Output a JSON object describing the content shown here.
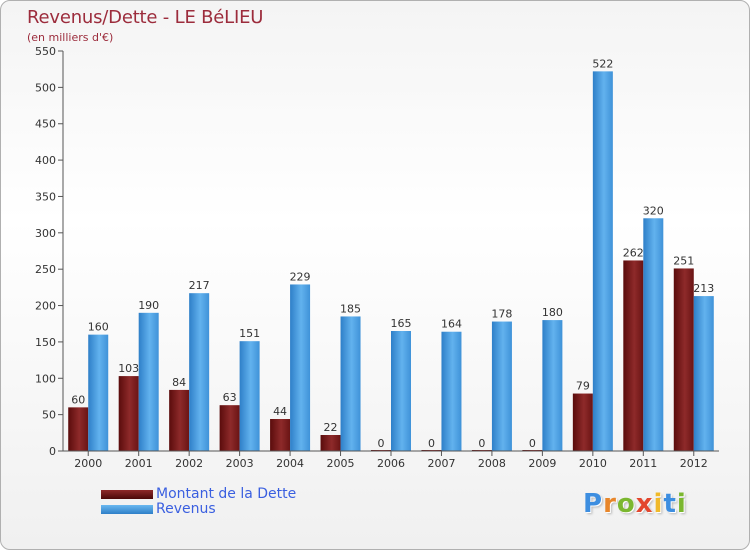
{
  "title": "Revenus/Dette - LE BéLIEU",
  "subtitle": "(en milliers d'€)",
  "brand": {
    "text": "Proxiti",
    "letter_colors": [
      "#3d8ee0",
      "#e8862a",
      "#7bb72f",
      "#e3472e",
      "#f0b92a",
      "#3d8ee0",
      "#7bb72f"
    ]
  },
  "legend": [
    {
      "label": "Montant de la Dette",
      "color": "#7a1a1a"
    },
    {
      "label": "Revenus",
      "color": "#4a9de0"
    }
  ],
  "chart_data": {
    "type": "bar",
    "title": "Revenus/Dette - LE BéLIEU",
    "subtitle": "(en milliers d'€)",
    "xlabel": "",
    "ylabel": "",
    "categories": [
      "2000",
      "2001",
      "2002",
      "2003",
      "2004",
      "2005",
      "2006",
      "2007",
      "2008",
      "2009",
      "2010",
      "2011",
      "2012"
    ],
    "series": [
      {
        "name": "Montant de la Dette",
        "color": "#7a1a1a",
        "values": [
          60,
          103,
          84,
          63,
          44,
          22,
          0,
          0,
          0,
          0,
          79,
          262,
          251
        ]
      },
      {
        "name": "Revenus",
        "color": "#4a9de0",
        "values": [
          160,
          190,
          217,
          151,
          229,
          185,
          165,
          164,
          178,
          180,
          522,
          320,
          213
        ]
      }
    ],
    "ylim": [
      0,
      550
    ],
    "yticks": [
      0,
      50,
      100,
      150,
      200,
      250,
      300,
      350,
      400,
      450,
      500,
      550
    ],
    "grid": false,
    "legend_position": "bottom-left"
  }
}
